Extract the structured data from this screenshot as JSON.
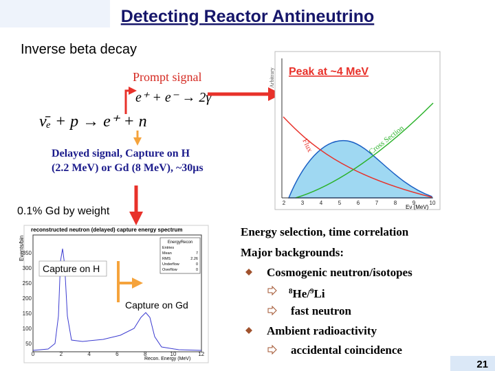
{
  "title": "Detecting Reactor Antineutrino",
  "subtitle": "Inverse beta decay",
  "prompt": {
    "label": "Prompt signal",
    "equation": "e⁺ + e⁻ → 2γ"
  },
  "reaction": "ν̄ₑ + p → e⁺ + n",
  "delayed": {
    "line1": "Delayed signal, Capture on H",
    "line2": "(2.2 MeV)  or Gd (8 MeV), ~30μs"
  },
  "doping": "0.1% Gd by weight",
  "spectrum_plot": {
    "annotation": "Peak at ~4 MeV",
    "y_label": "Arbitrary",
    "flux_label": "Flux",
    "cross_section_label": "Cross Section",
    "x_label": "Eν (MeV)",
    "xticks": [
      "2",
      "3",
      "4",
      "5",
      "6",
      "7",
      "8",
      "9",
      "10"
    ]
  },
  "capture_plot": {
    "title": "reconstructed neutron (delayed) capture energy spectrum",
    "y_label": "Events/bin",
    "x_label": "Recon. Energy (MeV)",
    "stats": {
      "name": "EnergyRecon",
      "rows": [
        [
          "Entries",
          ""
        ],
        [
          "Mean",
          "7"
        ],
        [
          "RMS",
          "2.26"
        ],
        [
          "Underflow",
          "0"
        ],
        [
          "Overflow",
          "0"
        ]
      ]
    },
    "yticks": [
      "50",
      "100",
      "150",
      "200",
      "250",
      "300",
      "350"
    ],
    "xticks": [
      "0",
      "2",
      "4",
      "6",
      "8",
      "10",
      "12"
    ],
    "h_label": "Capture on H",
    "gd_label": "Capture on Gd"
  },
  "notes": {
    "line1": "Energy selection,  time correlation",
    "line2": "Major backgrounds:",
    "bullets": [
      {
        "text": "Cosmogenic neutron/isotopes",
        "subs": [
          {
            "m1": "8",
            "s1": "He/",
            "m2": "9",
            "s2": "Li"
          },
          {
            "text": "fast neutron"
          }
        ]
      },
      {
        "text": "Ambient radioactivity",
        "subs": [
          {
            "text": "accidental coincidence"
          }
        ]
      }
    ]
  },
  "page_number": "21"
}
